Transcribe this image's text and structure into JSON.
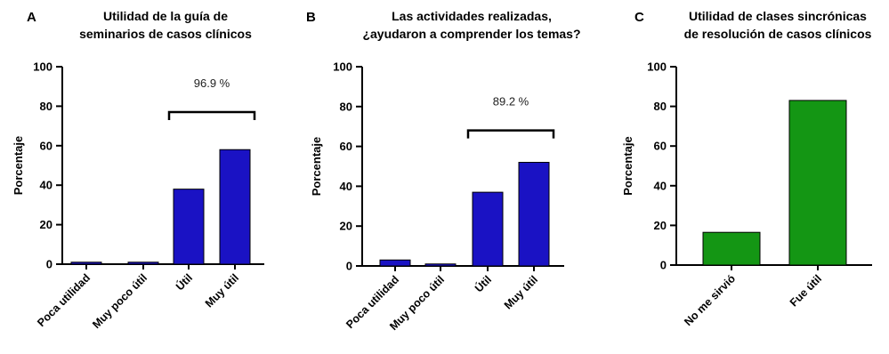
{
  "chart_data": [
    {
      "type": "bar",
      "panel": "A",
      "title": [
        "Utilidad de la guía de",
        "seminarios de casos clínicos"
      ],
      "ylabel": "Porcentaje",
      "ylim": [
        0,
        100
      ],
      "yticks": [
        "0",
        "20",
        "40",
        "60",
        "80",
        "100"
      ],
      "categories": [
        "Poca utilidad",
        "Muy poco útil",
        "Útil",
        "Muy útil"
      ],
      "values": [
        1,
        1,
        38,
        58
      ],
      "color": "#1a12c4",
      "bracket": {
        "label": "96.9 %",
        "from": 2,
        "to": 3,
        "y": 77
      }
    },
    {
      "type": "bar",
      "panel": "B",
      "title": [
        "Las actividades realizadas,",
        "¿ayudaron a comprender los temas?"
      ],
      "ylabel": "Porcentaje",
      "ylim": [
        0,
        100
      ],
      "yticks": [
        "0",
        "20",
        "40",
        "60",
        "80",
        "100"
      ],
      "categories": [
        "Poca utilidad",
        "Muy poco útil",
        "Útil",
        "Muy útil"
      ],
      "values": [
        3,
        1,
        37,
        52
      ],
      "color": "#1a12c4",
      "bracket": {
        "label": "89.2 %",
        "from": 2,
        "to": 3,
        "y": 68
      }
    },
    {
      "type": "bar",
      "panel": "C",
      "title": [
        "Utilidad de clases sincrónicas",
        "de resolución de casos clínicos"
      ],
      "ylabel": "Porcentaje",
      "ylim": [
        0,
        100
      ],
      "yticks": [
        "0",
        "20",
        "40",
        "60",
        "80",
        "100"
      ],
      "categories": [
        "No me sirvió",
        "Fue útil"
      ],
      "values": [
        16.5,
        83
      ],
      "color": "#149614"
    }
  ]
}
